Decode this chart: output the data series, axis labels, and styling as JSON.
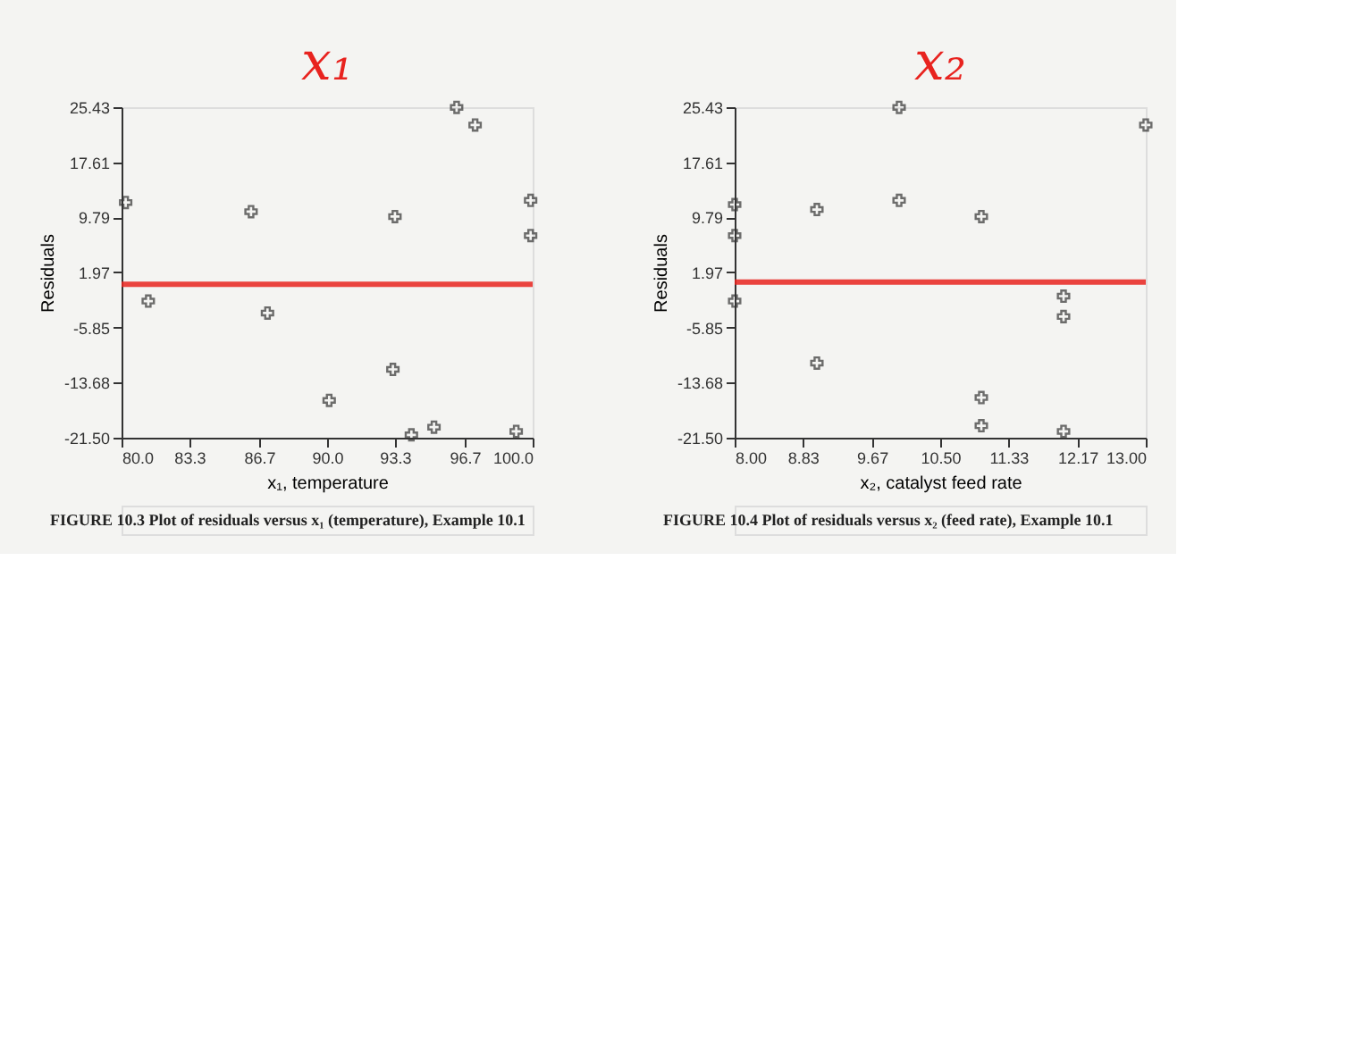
{
  "chart_data": [
    {
      "type": "scatter",
      "title": "x₁",
      "xlabel": "x₁, temperature",
      "ylabel": "Residuals",
      "annotations": [
        "FIGURE 10.3  Plot of residuals versus x₁ (temperature), Example 10.1"
      ],
      "x": [
        80.2,
        81.3,
        86.3,
        87.1,
        90.1,
        93.3,
        93.2,
        94.1,
        95.2,
        96.3,
        97.2,
        99.2,
        99.9,
        99.9
      ],
      "series": [
        {
          "color": "#333333",
          "values": [
            11.9,
            -2.1,
            10.6,
            -3.8,
            -16.2,
            9.9,
            -11.8,
            -21.1,
            -20.0,
            25.4,
            22.9,
            -20.6,
            12.2,
            7.2
          ]
        }
      ],
      "marker": "cross",
      "xlim": [
        80,
        100
      ],
      "ylim": [
        -21.5,
        25.43
      ],
      "xticks": [
        {
          "value": 80,
          "label": "80.0"
        },
        {
          "value": 83.3,
          "label": "83.3"
        },
        {
          "value": 86.7,
          "label": "86.7"
        },
        {
          "value": 90,
          "label": "90.0"
        },
        {
          "value": 93.3,
          "label": "93.3"
        },
        {
          "value": 96.7,
          "label": "96.7"
        },
        {
          "value": 100,
          "label": "100.0"
        }
      ],
      "yticks": [
        {
          "value": -21.5,
          "label": "-21.50"
        },
        -13.68,
        -5.85,
        1.97,
        9.79,
        17.61,
        25.43
      ],
      "ref_lines": [
        {
          "axis": "y",
          "value": 0.3,
          "color": "#e8231f"
        }
      ],
      "grid": false
    },
    {
      "type": "scatter",
      "title": "x₂",
      "xlabel": "x₂, catalyst feed rate",
      "ylabel": "Residuals",
      "annotations": [
        "FIGURE 10.4  Plot of residuals versus x₂ (feed rate), Example 10.1"
      ],
      "x": [
        8,
        8,
        8,
        9,
        9,
        10,
        10,
        11,
        11,
        11,
        12,
        12,
        12,
        13
      ],
      "series": [
        {
          "color": "#333333",
          "values": [
            11.6,
            7.2,
            -2.1,
            10.9,
            -10.9,
            25.4,
            12.2,
            9.9,
            -15.8,
            -19.8,
            -1.4,
            -4.3,
            -20.6,
            22.9
          ]
        }
      ],
      "marker": "cross",
      "xlim": [
        8,
        13
      ],
      "ylim": [
        -21.5,
        25.43
      ],
      "xticks": [
        {
          "value": 8,
          "label": "8.00"
        },
        8.83,
        9.67,
        {
          "value": 10.5,
          "label": "10.50"
        },
        11.33,
        12.17,
        {
          "value": 13,
          "label": "13.00"
        }
      ],
      "yticks": [
        {
          "value": -21.5,
          "label": "-21.50"
        },
        -13.68,
        -5.85,
        1.97,
        9.79,
        17.61,
        25.43
      ],
      "ref_lines": [
        {
          "axis": "y",
          "value": 0.6,
          "color": "#e8231f"
        }
      ],
      "grid": false
    }
  ]
}
